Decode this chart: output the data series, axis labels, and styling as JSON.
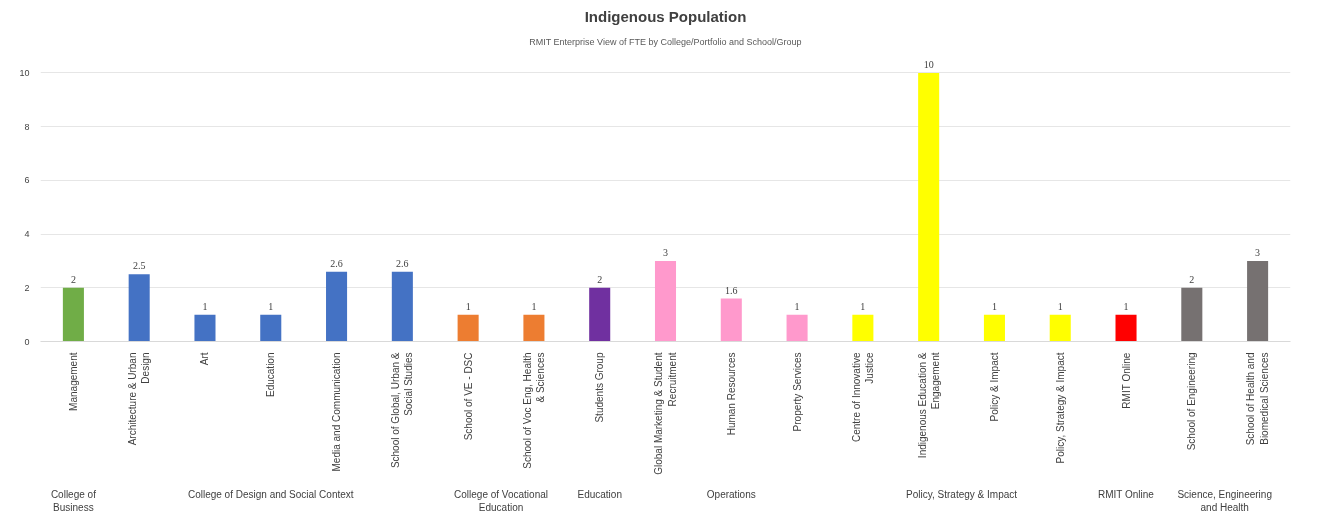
{
  "chart_data": {
    "type": "bar",
    "title": "Indigenous Population",
    "subtitle": "RMIT Enterprise View of FTE by College/Portfolio and School/Group",
    "categories": [
      "Management",
      "Architecture & Urban Design",
      "Art",
      "Education",
      "Media and Communication",
      "School of Global, Urban & Social Studies",
      "School of VE - DSC",
      "School of Voc Eng, Health & Sciences",
      "Students Group",
      "Global Marketing & Student Recruitment",
      "Human Resources",
      "Property Services",
      "Centre of Innovative Justice",
      "Indigenous Education & Engagement",
      "Policy & Impact",
      "Policy, Strategy & Impact",
      "RMIT Online",
      "School of Engineering",
      "School of Health and Biomedical Sciences"
    ],
    "values": [
      2,
      2.5,
      1,
      1,
      2.6,
      2.6,
      1,
      1,
      2,
      3,
      1.6,
      1,
      1,
      10,
      1,
      1,
      1,
      2,
      3
    ],
    "colors": [
      "#70ad47",
      "#4472c4",
      "#4472c4",
      "#4472c4",
      "#4472c4",
      "#4472c4",
      "#ed7d31",
      "#ed7d31",
      "#7030a0",
      "#ff99cc",
      "#ff99cc",
      "#ff99cc",
      "#ffff00",
      "#ffff00",
      "#ffff00",
      "#ffff00",
      "#ff0000",
      "#767171",
      "#767171"
    ],
    "data_labels": true,
    "ylim": [
      0,
      10
    ],
    "yticks": [
      0,
      2,
      4,
      6,
      8,
      10
    ],
    "grid": "y",
    "annotations": [
      "College of Business",
      "College of Design and Social Context",
      "College of Vocational Education",
      "Education",
      "Operations",
      "Policy, Strategy & Impact",
      "RMIT Online",
      "Science, Engineering and Health"
    ]
  }
}
